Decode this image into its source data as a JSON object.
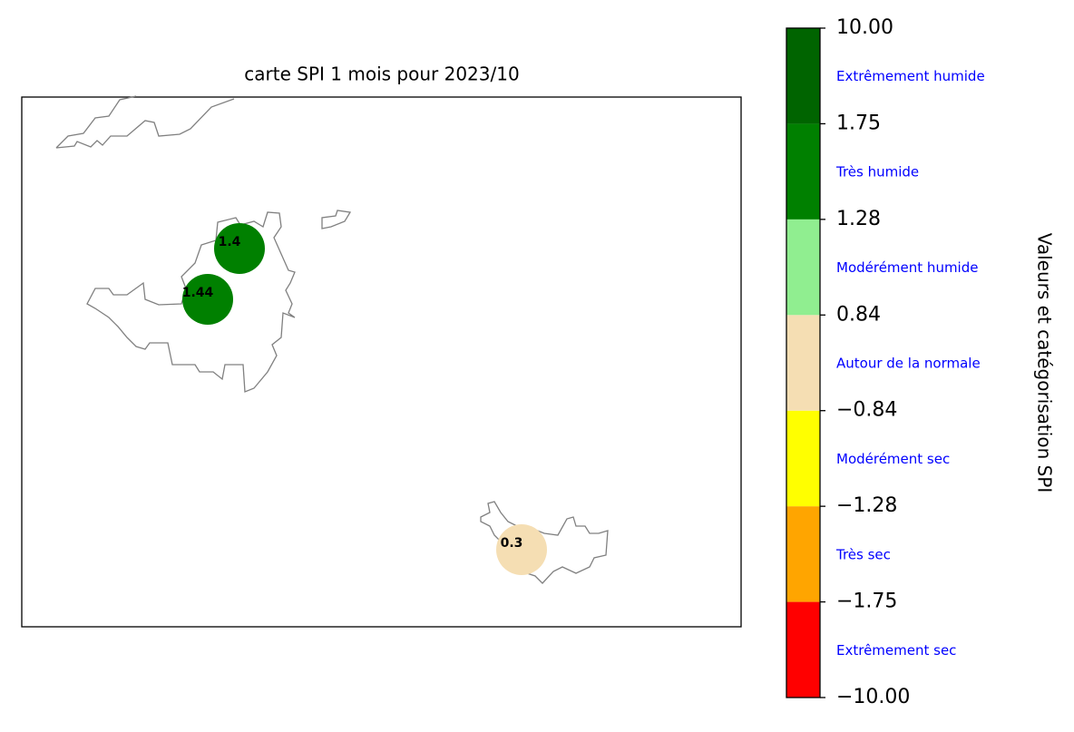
{
  "chart_data": {
    "type": "map",
    "title": "carte SPI 1 mois pour 2023/10",
    "values": [
      1.4,
      1.44,
      0.3
    ],
    "colorbar": {
      "label": "Valeurs et catégorisation SPI",
      "ticks": [
        {
          "value": -10,
          "label": "−10.00"
        },
        {
          "value": -1.75,
          "label": "−1.75"
        },
        {
          "value": -1.28,
          "label": "−1.28"
        },
        {
          "value": -0.84,
          "label": "−0.84"
        },
        {
          "value": 0.84,
          "label": "0.84"
        },
        {
          "value": 1.28,
          "label": "1.28"
        },
        {
          "value": 1.75,
          "label": "1.75"
        },
        {
          "value": 10,
          "label": "10.00"
        }
      ],
      "colors": [
        "#ff0000",
        "#ffa500",
        "#ffff00",
        "#f5deb3",
        "#90ee90",
        "#008000",
        "#006400"
      ],
      "categories": [
        "Extrêmement sec",
        "Très sec",
        "Modérément sec",
        "Autour de la normale",
        "Modérément humide",
        "Très humide",
        "Extrêmement humide"
      ],
      "category_color": "#0000ff"
    }
  }
}
